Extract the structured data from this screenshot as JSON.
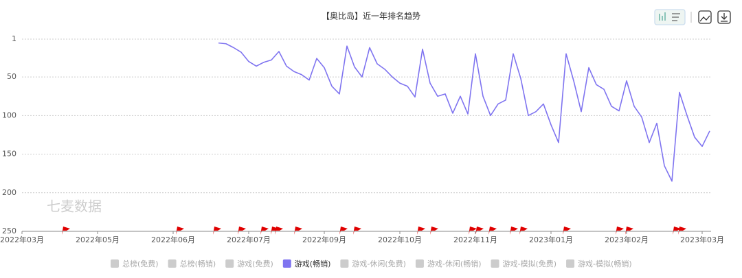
{
  "chart_data": {
    "type": "line",
    "title": "【奥比岛】近一年排名趋势",
    "watermark": "七麦数据",
    "categories": [
      "2022年03月",
      null,
      null,
      null,
      null,
      null,
      null,
      null,
      null,
      null,
      "2022年05月",
      null,
      null,
      null,
      null,
      null,
      null,
      null,
      null,
      null,
      "2022年06月",
      null,
      null,
      null,
      null,
      null,
      null,
      null,
      null,
      null,
      "2022年07月",
      null,
      null,
      null,
      null,
      null,
      null,
      null,
      null,
      null,
      "2022年09月",
      null,
      null,
      null,
      null,
      null,
      null,
      null,
      null,
      null,
      "2022年10月",
      null,
      null,
      null,
      null,
      null,
      null,
      null,
      null,
      null,
      "2022年11月",
      null,
      null,
      null,
      null,
      null,
      null,
      null,
      null,
      null,
      "2023年01月",
      null,
      null,
      null,
      null,
      null,
      null,
      null,
      null,
      null,
      "2023年02月",
      null,
      null,
      null,
      null,
      null,
      null,
      null,
      null,
      null,
      "2023年03月",
      null
    ],
    "series": [
      {
        "name": "游戏(畅销)",
        "color": "#7f74f0",
        "values": [
          null,
          null,
          null,
          null,
          null,
          null,
          null,
          null,
          null,
          null,
          null,
          null,
          null,
          null,
          null,
          null,
          null,
          null,
          null,
          null,
          null,
          null,
          null,
          null,
          null,
          null,
          6,
          7,
          12,
          18,
          30,
          36,
          31,
          28,
          17,
          36,
          43,
          47,
          54,
          26,
          38,
          62,
          72,
          10,
          37,
          50,
          12,
          33,
          40,
          50,
          58,
          62,
          76,
          14,
          58,
          75,
          72,
          97,
          75,
          98,
          20,
          75,
          100,
          85,
          80,
          20,
          52,
          100,
          95,
          85,
          112,
          135,
          20,
          55,
          95,
          38,
          60,
          66,
          88,
          94,
          55,
          88,
          102,
          135,
          110,
          165,
          185,
          70,
          100,
          128,
          140,
          120
        ]
      }
    ],
    "legend_order": [
      "总榜(免费)",
      "总榜(畅销)",
      "游戏(免费)",
      "游戏(畅销)",
      "游戏-休闲(免费)",
      "游戏-休闲(畅销)",
      "游戏-模拟(免费)",
      "游戏-模拟(畅销)"
    ],
    "inactive_color": "#cccccc",
    "ylim": [
      1,
      250
    ],
    "y_inverted": true,
    "yticks": [
      1,
      50,
      100,
      150,
      200,
      250
    ],
    "grid": true
  }
}
